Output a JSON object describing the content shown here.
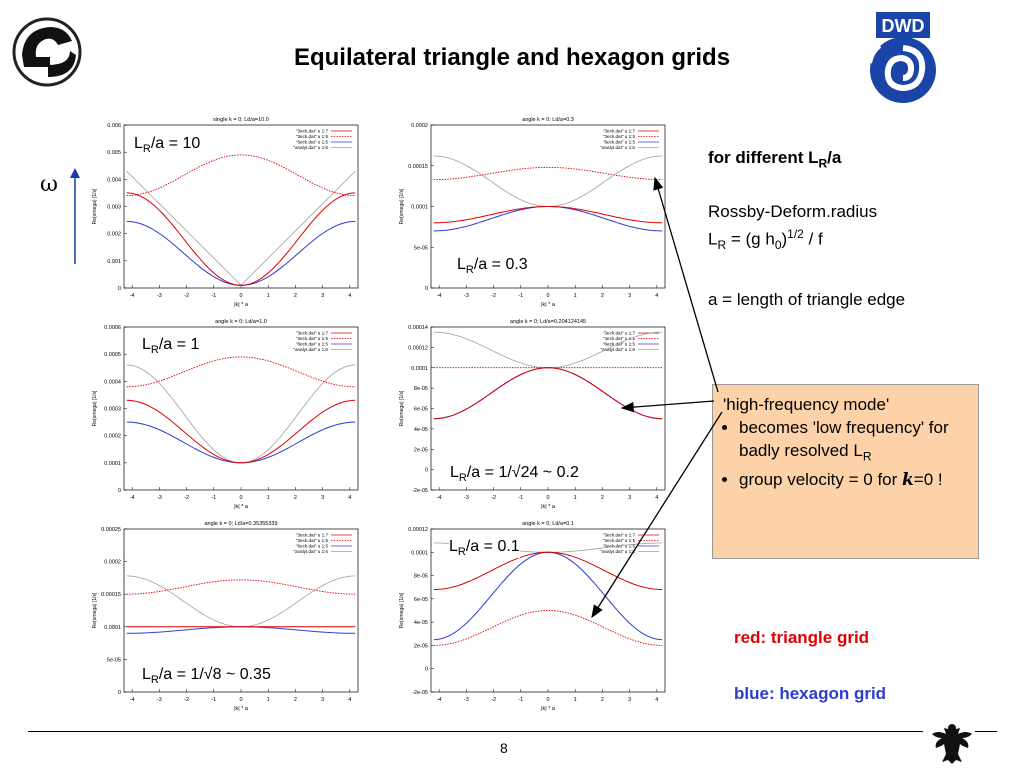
{
  "title": "Equilateral triangle and hexagon grids",
  "omega_symbol": "ω",
  "right_panel": {
    "heading_prefix": "for different L",
    "heading_sub": "R",
    "heading_suffix": "/a",
    "rossby_line1": "Rossby-Deform.radius",
    "rossby_line2_a": "L",
    "rossby_line2_sub": "R",
    "rossby_line2_b": " = (g h",
    "rossby_line2_sub0": "0",
    "rossby_line2_c": ")",
    "rossby_line2_sup": "1/2",
    "rossby_line2_d": " / f",
    "a_line": "a = length of triangle edge"
  },
  "box": {
    "title": "'high-frequency mode'",
    "bullet1_a": "becomes 'low frequency' for badly resolved L",
    "bullet1_sub": "R",
    "bullet2_a": "group velocity = 0 for ",
    "bullet2_k": "k",
    "bullet2_b": "=0 !",
    "color": "#fdd2a8"
  },
  "legend_red": "red: triangle grid",
  "legend_blue": "blue: hexagon grid",
  "page_number": "8",
  "colors": {
    "triangle": "#e00000",
    "hexagon": "#2c3cd0",
    "analytic": "#a0a0a0"
  },
  "chart_data": [
    {
      "type": "line",
      "title": "single k = 0;  Ld/a=10.0",
      "label_prefix": "L",
      "label_sub": "R",
      "label_suffix": "/a = 10",
      "xlabel": "|k| * a",
      "ylabel": "Re(omega) [1/s]",
      "xlim": [
        -4.3,
        4.3
      ],
      "ylim": [
        0,
        0.006
      ],
      "x_ticks": [
        "-4",
        "-3",
        "-2",
        "-1",
        "0",
        "1",
        "2",
        "3",
        "4"
      ],
      "y_ticks": [
        {
          "v": 0,
          "t": "0"
        },
        {
          "v": 0.001,
          "t": "0.001"
        },
        {
          "v": 0.002,
          "t": "0.002"
        },
        {
          "v": 0.003,
          "t": "0.003"
        },
        {
          "v": 0.004,
          "t": "0.004"
        },
        {
          "v": 0.005,
          "t": "0.005"
        },
        {
          "v": 0.006,
          "t": "0.006"
        }
      ],
      "legend": [
        "\"3eck.dat\" u 1:7",
        "\"3eck.dat\" u 1:5",
        "\"6eck.dat\" u 1:5",
        "\"analyt.dat\" u 1:6"
      ],
      "curves": {
        "red_solid": [
          0.0001,
          0.0035
        ],
        "red_dash": [
          0.0049,
          0.0034
        ],
        "blue": [
          0.0001,
          0.00245
        ],
        "gray": [
          0.0001,
          0.0043
        ]
      }
    },
    {
      "type": "line",
      "title": "angle k = 0;  Ld/a=0.3",
      "label_prefix": "L",
      "label_sub": "R",
      "label_suffix": "/a = 0.3",
      "xlabel": "|k| * a",
      "ylabel": "Re(omega) [1/s]",
      "xlim": [
        -4.3,
        4.3
      ],
      "ylim": [
        0,
        0.0002
      ],
      "x_ticks": [
        "-4",
        "-3",
        "-2",
        "-1",
        "0",
        "1",
        "2",
        "3",
        "4"
      ],
      "y_ticks": [
        {
          "v": 0,
          "t": "0"
        },
        {
          "v": 5e-05,
          "t": "5e-05"
        },
        {
          "v": 0.0001,
          "t": "0.0001"
        },
        {
          "v": 0.00015,
          "t": "0.00015"
        },
        {
          "v": 0.0002,
          "t": "0.0002"
        }
      ],
      "legend": [
        "\"3eck.dat\" u 1:7",
        "\"3eck.dat\" u 1:5",
        "\"6eck.dat\" u 1:5",
        "\"analyt.dat\" u 1:6"
      ],
      "curves": {
        "red_solid": [
          0.0001,
          8e-05
        ],
        "red_dash": [
          0.000148,
          0.000133
        ],
        "blue": [
          0.0001,
          7e-05
        ],
        "gray": [
          0.0001,
          0.000162
        ]
      }
    },
    {
      "type": "line",
      "title": "angle k = 0;  Ld/a=1.0",
      "label_prefix": "L",
      "label_sub": "R",
      "label_suffix": "/a = 1",
      "xlabel": "|k| * a",
      "ylabel": "Re(omega) [1/s]",
      "xlim": [
        -4.3,
        4.3
      ],
      "ylim": [
        0,
        0.0006
      ],
      "x_ticks": [
        "-4",
        "-3",
        "-2",
        "-1",
        "0",
        "1",
        "2",
        "3",
        "4"
      ],
      "y_ticks": [
        {
          "v": 0,
          "t": "0"
        },
        {
          "v": 0.0001,
          "t": "0.0001"
        },
        {
          "v": 0.0002,
          "t": "0.0002"
        },
        {
          "v": 0.0003,
          "t": "0.0003"
        },
        {
          "v": 0.0004,
          "t": "0.0004"
        },
        {
          "v": 0.0005,
          "t": "0.0005"
        },
        {
          "v": 0.0006,
          "t": "0.0006"
        }
      ],
      "legend": [
        "\"3eck.dat\" u 1:7",
        "\"3eck.dat\" u 1:5",
        "\"6eck.dat\" u 1:5",
        "\"analyt.dat\" u 1:6"
      ],
      "curves": {
        "red_solid": [
          0.0001,
          0.00033
        ],
        "red_dash": [
          0.00049,
          0.00038
        ],
        "blue": [
          0.0001,
          0.00025
        ],
        "gray": [
          0.0001,
          0.00046
        ]
      }
    },
    {
      "type": "line",
      "title": "angle k = 0;  Ld/a=0.204124145",
      "label_prefix": "L",
      "label_sub": "R",
      "label_suffix": "/a = 1/√24 ~ 0.2",
      "xlabel": "|k| * a",
      "ylabel": "Re(omega) [1/s]",
      "xlim": [
        -4.3,
        4.3
      ],
      "ylim": [
        -2e-05,
        0.00014
      ],
      "x_ticks": [
        "-4",
        "-3",
        "-2",
        "-1",
        "0",
        "1",
        "2",
        "3",
        "4"
      ],
      "y_ticks": [
        {
          "v": -2e-05,
          "t": "-2e-05"
        },
        {
          "v": 0,
          "t": "0"
        },
        {
          "v": 2e-05,
          "t": "2e-05"
        },
        {
          "v": 4e-05,
          "t": "4e-05"
        },
        {
          "v": 6e-05,
          "t": "6e-05"
        },
        {
          "v": 8e-05,
          "t": "8e-05"
        },
        {
          "v": 0.0001,
          "t": "0.0001"
        },
        {
          "v": 0.00012,
          "t": "0.00012"
        },
        {
          "v": 0.00014,
          "t": "0.00014"
        }
      ],
      "legend": [
        "\"3eck.dat\" u 1:7",
        "\"3eck.dat\" u 1:5",
        "\"6eck.dat\" u 1:5",
        "\"analyt.dat\" u 1:6"
      ],
      "curves": {
        "red_solid": [
          0.0001,
          5e-05
        ],
        "red_dash": [
          0.0001,
          0.0001
        ],
        "blue": [
          0.0001,
          5e-05
        ],
        "gray": [
          0.0001,
          0.000135
        ]
      }
    },
    {
      "type": "line",
      "title": "angle k = 0;  Ld/a=0.35355339",
      "label_prefix": "L",
      "label_sub": "R",
      "label_suffix": "/a = 1/√8 ~ 0.35",
      "xlabel": "|k| * a",
      "ylabel": "Re(omega) [1/s]",
      "xlim": [
        -4.3,
        4.3
      ],
      "ylim": [
        0,
        0.00025
      ],
      "x_ticks": [
        "-4",
        "-3",
        "-2",
        "-1",
        "0",
        "1",
        "2",
        "3",
        "4"
      ],
      "y_ticks": [
        {
          "v": 0,
          "t": "0"
        },
        {
          "v": 5e-05,
          "t": "5e-05"
        },
        {
          "v": 0.0001,
          "t": "0.0001"
        },
        {
          "v": 0.00015,
          "t": "0.00015"
        },
        {
          "v": 0.0002,
          "t": "0.0002"
        },
        {
          "v": 0.00025,
          "t": "0.00025"
        }
      ],
      "legend": [
        "\"3eck.dat\" u 1:7",
        "\"3eck.dat\" u 1:5",
        "\"6eck.dat\" u 1:5",
        "\"analyt.dat\" u 1:6"
      ],
      "curves": {
        "red_solid": [
          0.0001,
          0.0001
        ],
        "red_dash": [
          0.000172,
          0.00015
        ],
        "blue": [
          0.0001,
          9e-05
        ],
        "gray": [
          0.0001,
          0.000178
        ]
      }
    },
    {
      "type": "line",
      "title": "angle k = 0;  Ld/a=0.1",
      "label_prefix": "L",
      "label_sub": "R",
      "label_suffix": "/a = 0.1",
      "xlabel": "|k| * a",
      "ylabel": "Re(omega) [1/s]",
      "xlim": [
        -4.3,
        4.3
      ],
      "ylim": [
        -2e-05,
        0.00012
      ],
      "x_ticks": [
        "-4",
        "-3",
        "-2",
        "-1",
        "0",
        "1",
        "2",
        "3",
        "4"
      ],
      "y_ticks": [
        {
          "v": -2e-05,
          "t": "-2e-05"
        },
        {
          "v": 0,
          "t": "0"
        },
        {
          "v": 2e-05,
          "t": "2e-05"
        },
        {
          "v": 4e-05,
          "t": "4e-05"
        },
        {
          "v": 6e-05,
          "t": "6e-05"
        },
        {
          "v": 8e-05,
          "t": "8e-05"
        },
        {
          "v": 0.0001,
          "t": "0.0001"
        },
        {
          "v": 0.00012,
          "t": "0.00012"
        }
      ],
      "legend": [
        "\"3eck.dat\" u 1:7",
        "\"3eck.dat\" u 1:5",
        "\"6eck.dat\" u 1:5",
        "\"analyt.dat\" u 1:6"
      ],
      "curves": {
        "red_solid": [
          0.0001,
          6.8e-05
        ],
        "red_dash": [
          5e-05,
          2e-05
        ],
        "blue": [
          0.0001,
          2.5e-05
        ],
        "gray": [
          0.0001,
          0.000108
        ]
      }
    }
  ]
}
